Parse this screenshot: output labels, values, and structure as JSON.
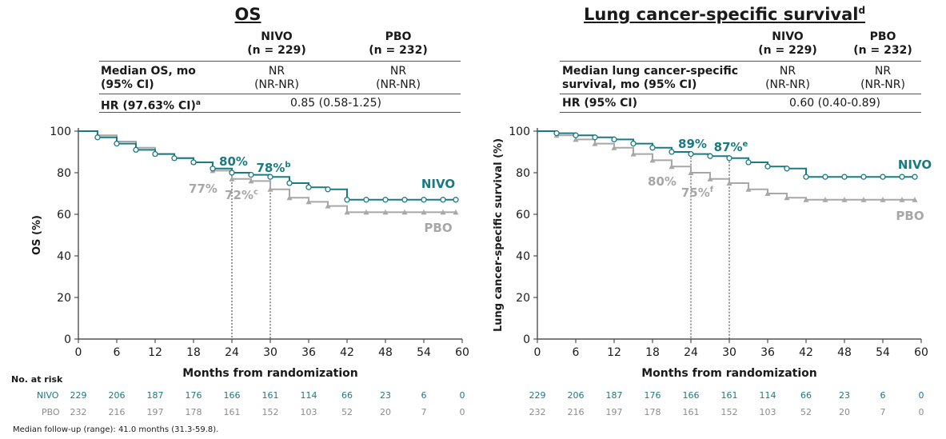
{
  "colors": {
    "nivo": "#1a7a82",
    "pbo": "#a7a7a7",
    "text": "#1a1a1a"
  },
  "left_table": {
    "title": "OS",
    "col1": [
      "NIVO",
      "(n = 229)"
    ],
    "col2": [
      "PBO",
      "(n = 232)"
    ],
    "row1_label": [
      "Median OS, mo",
      "(95% CI)"
    ],
    "row1_nivo": [
      "NR",
      "(NR-NR)"
    ],
    "row1_pbo": [
      "NR",
      "(NR-NR)"
    ],
    "row2_label": "HR (97.63% CI)",
    "row2_label_sup": "a",
    "row2_value": "0.85 (0.58-1.25)"
  },
  "right_table": {
    "title": "Lung cancer-specific survival",
    "title_sup": "d",
    "col1": [
      "NIVO",
      "(n = 229)"
    ],
    "col2": [
      "PBO",
      "(n = 232)"
    ],
    "row1_label": [
      "Median lung cancer-specific",
      "survival, mo (95% CI)"
    ],
    "row1_nivo": [
      "NR",
      "(NR-NR)"
    ],
    "row1_pbo": [
      "NR",
      "(NR-NR)"
    ],
    "row2_label": "HR (95% CI)",
    "row2_value": "0.60 (0.40-0.89)"
  },
  "chart_data": [
    {
      "type": "line",
      "ylabel": "OS (%)",
      "xlabel": "Months from randomization",
      "xlim": [
        0,
        60
      ],
      "ylim": [
        0,
        100
      ],
      "xticks": [
        0,
        6,
        12,
        18,
        24,
        30,
        36,
        42,
        48,
        54,
        60
      ],
      "yticks": [
        0,
        20,
        40,
        60,
        80,
        100
      ],
      "series": [
        {
          "name": "NIVO",
          "x": [
            0,
            3,
            6,
            9,
            12,
            15,
            18,
            21,
            24,
            27,
            30,
            33,
            36,
            39,
            42,
            45,
            48,
            51,
            54,
            57,
            59
          ],
          "y": [
            100,
            97,
            94,
            91,
            89,
            87,
            85,
            82,
            80,
            79,
            78,
            75,
            73,
            72,
            67,
            67,
            67,
            67,
            67,
            67,
            67
          ]
        },
        {
          "name": "PBO",
          "x": [
            0,
            3,
            6,
            9,
            12,
            15,
            18,
            21,
            24,
            27,
            30,
            33,
            36,
            39,
            42,
            45,
            48,
            51,
            54,
            57,
            59
          ],
          "y": [
            100,
            98,
            95,
            92,
            89,
            87,
            85,
            81,
            77,
            76,
            72,
            68,
            66,
            64,
            61,
            61,
            61,
            61,
            61,
            61,
            61
          ]
        }
      ],
      "annotations": [
        {
          "text": "80%",
          "series": "NIVO"
        },
        {
          "text": "78%",
          "sup": "b",
          "series": "NIVO"
        },
        {
          "text": "77%",
          "series": "PBO"
        },
        {
          "text": "72%",
          "sup": "c",
          "series": "PBO"
        }
      ],
      "reference_lines_x": [
        24,
        30
      ],
      "legend": {
        "nivo": "NIVO",
        "pbo": "PBO"
      }
    },
    {
      "type": "line",
      "ylabel": "Lung cancer-specific survival (%)",
      "xlabel": "Months from randomization",
      "xlim": [
        0,
        60
      ],
      "ylim": [
        0,
        100
      ],
      "xticks": [
        0,
        6,
        12,
        18,
        24,
        30,
        36,
        42,
        48,
        54,
        60
      ],
      "yticks": [
        0,
        20,
        40,
        60,
        80,
        100
      ],
      "series": [
        {
          "name": "NIVO",
          "x": [
            0,
            3,
            6,
            9,
            12,
            15,
            18,
            21,
            24,
            27,
            30,
            33,
            36,
            39,
            42,
            45,
            48,
            51,
            54,
            57,
            59
          ],
          "y": [
            100,
            99,
            98,
            97,
            96,
            94,
            92,
            90,
            89,
            88,
            87,
            85,
            83,
            82,
            78,
            78,
            78,
            78,
            78,
            78,
            78
          ]
        },
        {
          "name": "PBO",
          "x": [
            0,
            3,
            6,
            9,
            12,
            15,
            18,
            21,
            24,
            27,
            30,
            33,
            36,
            39,
            42,
            45,
            48,
            51,
            54,
            57,
            59
          ],
          "y": [
            100,
            98,
            96,
            94,
            92,
            89,
            86,
            83,
            80,
            77,
            75,
            72,
            70,
            68,
            67,
            67,
            67,
            67,
            67,
            67,
            67
          ]
        }
      ],
      "annotations": [
        {
          "text": "89%",
          "series": "NIVO"
        },
        {
          "text": "87%",
          "sup": "e",
          "series": "NIVO"
        },
        {
          "text": "80%",
          "series": "PBO"
        },
        {
          "text": "75%",
          "sup": "f",
          "series": "PBO"
        }
      ],
      "reference_lines_x": [
        24,
        30
      ],
      "legend": {
        "nivo": "NIVO",
        "pbo": "PBO"
      }
    }
  ],
  "at_risk": {
    "label": "No. at risk",
    "nivo_label": "NIVO",
    "pbo_label": "PBO",
    "nivo": [
      "229",
      "206",
      "187",
      "176",
      "166",
      "161",
      "114",
      "66",
      "23",
      "6",
      "0"
    ],
    "pbo": [
      "232",
      "216",
      "197",
      "178",
      "161",
      "152",
      "103",
      "52",
      "20",
      "7",
      "0"
    ]
  },
  "footnote": "Median follow-up (range): 41.0 months (31.3-59.8)."
}
